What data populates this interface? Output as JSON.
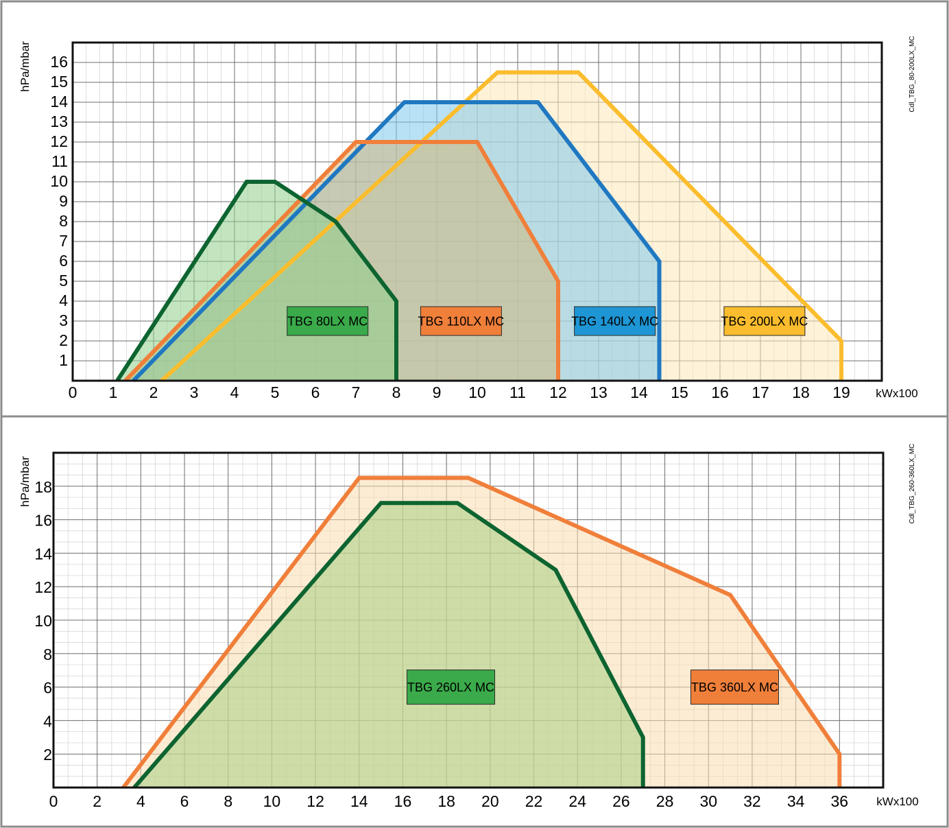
{
  "charts": [
    {
      "code": "Cdl_TBG_80-200LX_MC",
      "chart_data": {
        "type": "area",
        "ylabel": "hPa/mbar",
        "xlabel": "kWx100",
        "xlim": [
          0,
          20
        ],
        "ylim": [
          0,
          17
        ],
        "x_ticks": [
          "0",
          "1",
          "2",
          "3",
          "4",
          "5",
          "6",
          "7",
          "8",
          "9",
          "10",
          "11",
          "12",
          "13",
          "14",
          "15",
          "16",
          "17",
          "18",
          "19"
        ],
        "y_ticks": [
          "1",
          "2",
          "3",
          "4",
          "5",
          "6",
          "7",
          "8",
          "9",
          "10",
          "11",
          "12",
          "13",
          "14",
          "15",
          "16"
        ],
        "series": [
          {
            "name": "TBG 200LX MC",
            "color": "#fbbd2d",
            "fill": "#fde7b8",
            "label_bg": "#fbbd2d",
            "points": [
              [
                2.2,
                0
              ],
              [
                10.5,
                15.5
              ],
              [
                12.5,
                15.5
              ],
              [
                19,
                2
              ],
              [
                19,
                0
              ]
            ],
            "label_at": [
              17.1,
              3
            ]
          },
          {
            "name": "TBG 140LX MC",
            "color": "#1f78c1",
            "fill": "#7fc8ec",
            "label_bg": "#1e96d5",
            "points": [
              [
                1.5,
                0
              ],
              [
                8.2,
                14
              ],
              [
                11.5,
                14
              ],
              [
                14.5,
                6
              ],
              [
                14.5,
                0
              ]
            ],
            "label_at": [
              13.4,
              3
            ]
          },
          {
            "name": "TBG 110LX MC",
            "color": "#f07f3a",
            "fill": "#d2b880",
            "label_bg": "#f07f3a",
            "points": [
              [
                1.3,
                0
              ],
              [
                7,
                12
              ],
              [
                10,
                12
              ],
              [
                12,
                5
              ],
              [
                12,
                0
              ]
            ],
            "label_at": [
              9.6,
              3
            ]
          },
          {
            "name": "TBG 80LX MC",
            "color": "#0d6430",
            "fill": "#8fd08a",
            "label_bg": "#3aaa4a",
            "points": [
              [
                1.1,
                0
              ],
              [
                4.3,
                10
              ],
              [
                5,
                10
              ],
              [
                6.5,
                8
              ],
              [
                8,
                4
              ],
              [
                8,
                0
              ]
            ],
            "label_at": [
              6.3,
              3
            ]
          }
        ]
      }
    },
    {
      "code": "Cdl_TBG_260-360LX_MC",
      "chart_data": {
        "type": "area",
        "ylabel": "hPa/mbar",
        "xlabel": "kWx100",
        "xlim": [
          0,
          38
        ],
        "ylim": [
          0,
          20
        ],
        "x_ticks": [
          "0",
          "2",
          "4",
          "6",
          "8",
          "10",
          "12",
          "14",
          "16",
          "18",
          "20",
          "22",
          "24",
          "26",
          "28",
          "30",
          "32",
          "34",
          "36"
        ],
        "y_ticks": [
          "2",
          "4",
          "6",
          "8",
          "10",
          "12",
          "14",
          "16",
          "18"
        ],
        "series": [
          {
            "name": "TBG 360LX MC",
            "color": "#f07f3a",
            "fill": "#fbdcb0",
            "label_bg": "#f07f3a",
            "points": [
              [
                3.2,
                0
              ],
              [
                14,
                18.5
              ],
              [
                19,
                18.5
              ],
              [
                31,
                11.5
              ],
              [
                36,
                2
              ],
              [
                36,
                0
              ]
            ],
            "label_at": [
              31.2,
              6
            ]
          },
          {
            "name": "TBG 260LX MC",
            "color": "#0d6430",
            "fill": "#a8cf84",
            "label_bg": "#3aaa4a",
            "points": [
              [
                3.7,
                0
              ],
              [
                15,
                17
              ],
              [
                18.5,
                17
              ],
              [
                23,
                13
              ],
              [
                27,
                3
              ],
              [
                27,
                0
              ]
            ],
            "label_at": [
              18.2,
              6
            ]
          }
        ]
      }
    }
  ]
}
